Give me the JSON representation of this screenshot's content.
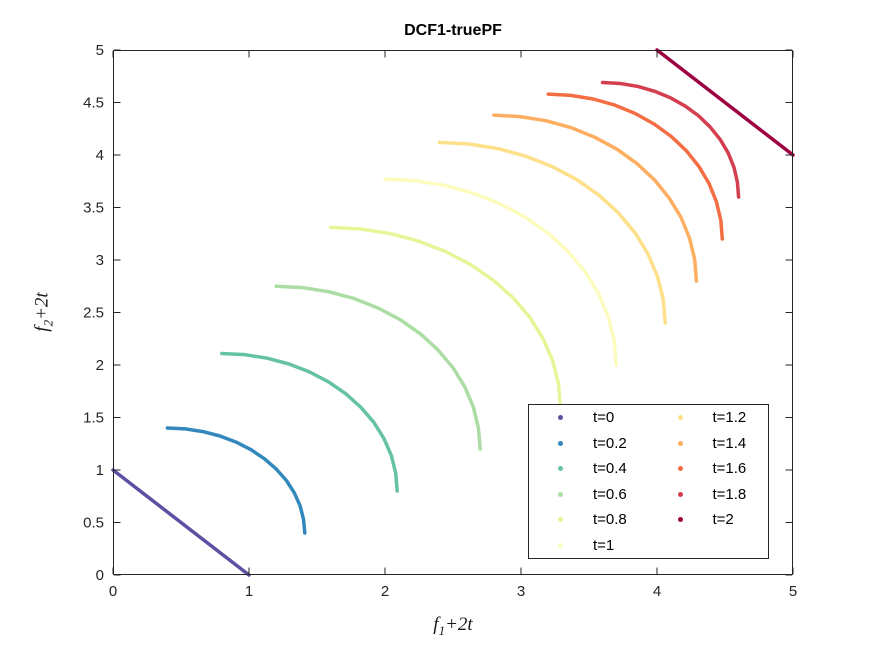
{
  "chart_data": {
    "type": "line",
    "title": "DCF1-truePF",
    "xlabel": {
      "var": "f",
      "sub": "1",
      "suffix": "+2t"
    },
    "ylabel": {
      "var": "f",
      "sub": "2",
      "suffix": "+2t"
    },
    "xlim": [
      0,
      5
    ],
    "ylim": [
      0,
      5
    ],
    "xticks": [
      0,
      1,
      2,
      3,
      4,
      5
    ],
    "xtick_labels": [
      "0",
      "1",
      "2",
      "3",
      "4",
      "5"
    ],
    "yticks": [
      0,
      0.5,
      1,
      1.5,
      2,
      2.5,
      3,
      3.5,
      4,
      4.5,
      5
    ],
    "ytick_labels": [
      "0",
      "0.5",
      "1",
      "1.5",
      "2",
      "2.5",
      "3",
      "3.5",
      "4",
      "4.5",
      "5"
    ],
    "grid": false,
    "box": true,
    "axis_color": "#262626",
    "line_width": 3.5,
    "legend": {
      "location": "inside-lower-right",
      "columns": 2,
      "rows_per_column": 6,
      "marker": "dot"
    },
    "series": [
      {
        "name": "t=0",
        "color": "#5e4fa2",
        "shape": "line",
        "points": [
          [
            0,
            1
          ],
          [
            1,
            0
          ]
        ]
      },
      {
        "name": "t=0.2",
        "color": "#3288bd",
        "shape": "arc",
        "points": [
          [
            0.4,
            1.4
          ],
          [
            0.532,
            1.391
          ],
          [
            0.661,
            1.366
          ],
          [
            0.787,
            1.324
          ],
          [
            0.905,
            1.266
          ],
          [
            1.015,
            1.193
          ],
          [
            1.114,
            1.107
          ],
          [
            1.201,
            1.009
          ],
          [
            1.275,
            0.9
          ],
          [
            1.333,
            0.783
          ],
          [
            1.376,
            0.659
          ],
          [
            1.401,
            0.531
          ],
          [
            1.41,
            0.4
          ]
        ]
      },
      {
        "name": "t=0.4",
        "color": "#66c2a5",
        "shape": "arc",
        "points": [
          [
            0.8,
            2.11
          ],
          [
            0.968,
            2.099
          ],
          [
            1.134,
            2.065
          ],
          [
            1.294,
            2.01
          ],
          [
            1.445,
            1.934
          ],
          [
            1.585,
            1.839
          ],
          [
            1.712,
            1.726
          ],
          [
            1.823,
            1.597
          ],
          [
            1.917,
            1.455
          ],
          [
            1.992,
            1.301
          ],
          [
            2.046,
            1.139
          ],
          [
            2.079,
            0.971
          ],
          [
            2.09,
            0.8
          ]
        ]
      },
      {
        "name": "t=0.6",
        "color": "#abdda4",
        "shape": "arc",
        "points": [
          [
            1.2,
            2.75
          ],
          [
            1.396,
            2.737
          ],
          [
            1.588,
            2.697
          ],
          [
            1.774,
            2.632
          ],
          [
            1.95,
            2.542
          ],
          [
            2.113,
            2.43
          ],
          [
            2.261,
            2.296
          ],
          [
            2.39,
            2.144
          ],
          [
            2.499,
            1.975
          ],
          [
            2.586,
            1.793
          ],
          [
            2.649,
            1.601
          ],
          [
            2.687,
            1.402
          ],
          [
            2.7,
            1.2
          ]
        ]
      },
      {
        "name": "t=0.8",
        "color": "#e6f598",
        "shape": "arc",
        "points": [
          [
            1.6,
            3.31
          ],
          [
            1.821,
            3.295
          ],
          [
            2.037,
            3.252
          ],
          [
            2.247,
            3.18
          ],
          [
            2.445,
            3.081
          ],
          [
            2.629,
            2.957
          ],
          [
            2.795,
            2.809
          ],
          [
            2.941,
            2.641
          ],
          [
            3.064,
            2.455
          ],
          [
            3.161,
            2.254
          ],
          [
            3.232,
            2.043
          ],
          [
            3.276,
            1.823
          ],
          [
            3.29,
            1.6
          ]
        ]
      },
      {
        "name": "t=1",
        "color": "#fbfcbd",
        "shape": "arc",
        "points": [
          [
            2.0,
            3.77
          ],
          [
            2.222,
            3.755
          ],
          [
            2.44,
            3.71
          ],
          [
            2.651,
            3.635
          ],
          [
            2.85,
            3.533
          ],
          [
            3.035,
            3.404
          ],
          [
            3.202,
            3.252
          ],
          [
            3.349,
            3.078
          ],
          [
            3.472,
            2.885
          ],
          [
            3.571,
            2.677
          ],
          [
            3.642,
            2.458
          ],
          [
            3.685,
            2.231
          ],
          [
            3.7,
            2.0
          ]
        ]
      },
      {
        "name": "t=1.2",
        "color": "#fee08b",
        "shape": "arc",
        "points": [
          [
            2.4,
            4.12
          ],
          [
            2.617,
            4.105
          ],
          [
            2.83,
            4.061
          ],
          [
            3.035,
            3.989
          ],
          [
            3.23,
            3.89
          ],
          [
            3.411,
            3.765
          ],
          [
            3.574,
            3.616
          ],
          [
            3.717,
            3.447
          ],
          [
            3.838,
            3.26
          ],
          [
            3.934,
            3.058
          ],
          [
            4.003,
            2.845
          ],
          [
            4.046,
            2.625
          ],
          [
            4.06,
            2.4
          ]
        ]
      },
      {
        "name": "t=1.4",
        "color": "#fdae61",
        "shape": "arc",
        "points": [
          [
            2.8,
            4.38
          ],
          [
            2.994,
            4.366
          ],
          [
            3.186,
            4.326
          ],
          [
            3.37,
            4.26
          ],
          [
            3.545,
            4.168
          ],
          [
            3.707,
            4.054
          ],
          [
            3.854,
            3.917
          ],
          [
            3.982,
            3.762
          ],
          [
            4.09,
            3.59
          ],
          [
            4.177,
            3.405
          ],
          [
            4.239,
            3.209
          ],
          [
            4.277,
            3.006
          ],
          [
            4.29,
            2.8
          ]
        ]
      },
      {
        "name": "t=1.6",
        "color": "#f46d43",
        "shape": "arc",
        "points": [
          [
            3.2,
            4.58
          ],
          [
            3.367,
            4.568
          ],
          [
            3.531,
            4.533
          ],
          [
            3.69,
            4.475
          ],
          [
            3.84,
            4.395
          ],
          [
            3.979,
            4.295
          ],
          [
            4.105,
            4.176
          ],
          [
            4.216,
            4.04
          ],
          [
            4.309,
            3.89
          ],
          [
            4.383,
            3.728
          ],
          [
            4.436,
            3.557
          ],
          [
            4.469,
            3.38
          ],
          [
            4.48,
            3.2
          ]
        ]
      },
      {
        "name": "t=1.8",
        "color": "#d53e4f",
        "shape": "arc",
        "points": [
          [
            3.6,
            4.69
          ],
          [
            3.731,
            4.681
          ],
          [
            3.859,
            4.653
          ],
          [
            3.983,
            4.607
          ],
          [
            4.1,
            4.544
          ],
          [
            4.209,
            4.465
          ],
          [
            4.307,
            4.371
          ],
          [
            4.393,
            4.264
          ],
          [
            4.466,
            4.145
          ],
          [
            4.524,
            4.017
          ],
          [
            4.566,
            3.882
          ],
          [
            4.591,
            3.742
          ],
          [
            4.6,
            3.6
          ]
        ]
      },
      {
        "name": "t=2",
        "color": "#9e0142",
        "shape": "line",
        "points": [
          [
            4,
            5
          ],
          [
            5,
            4
          ]
        ]
      }
    ]
  }
}
